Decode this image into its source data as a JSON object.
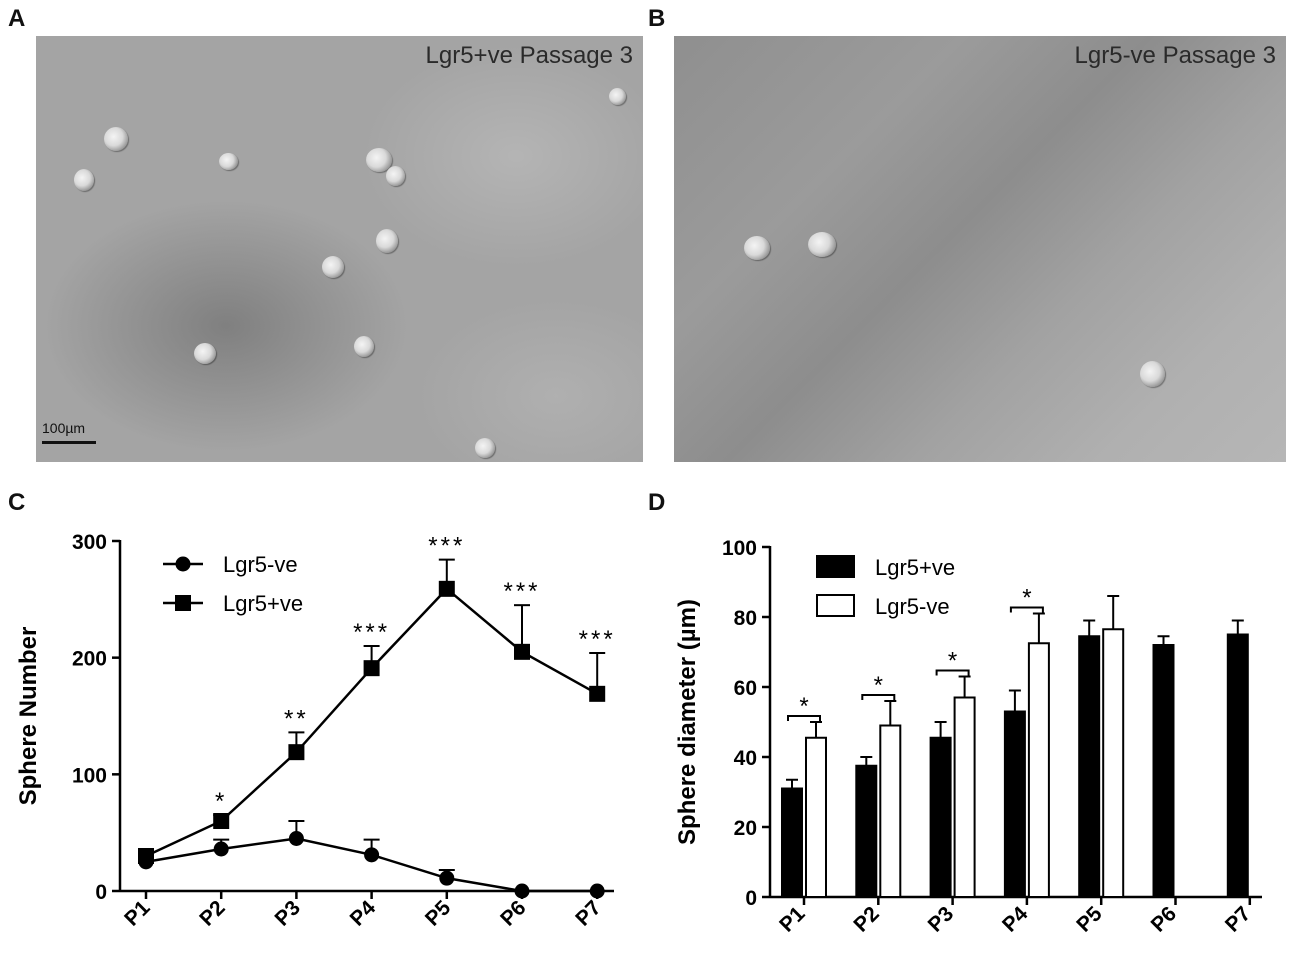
{
  "panels": {
    "A": {
      "letter": "A",
      "label": "Lgr5+ve Passage 3",
      "scale": "100µm"
    },
    "B": {
      "letter": "B",
      "label": "Lgr5-ve Passage 3"
    },
    "C": {
      "letter": "C"
    },
    "D": {
      "letter": "D"
    }
  },
  "chart_data": [
    {
      "panel": "C",
      "type": "line",
      "categories": [
        "P1",
        "P2",
        "P3",
        "P4",
        "P5",
        "P6",
        "P7"
      ],
      "ylabel": "Sphere Number",
      "xlabel": "",
      "ylim": [
        0,
        300
      ],
      "yticks": [
        0,
        100,
        200,
        300
      ],
      "legend_position": "top-left",
      "series": [
        {
          "name": "Lgr5-ve",
          "marker": "circle",
          "values": [
            25,
            36,
            45,
            31,
            11,
            0,
            0
          ],
          "errors": [
            3,
            8,
            15,
            13,
            7,
            0,
            0
          ]
        },
        {
          "name": "Lgr5+ve",
          "marker": "square",
          "values": [
            30,
            60,
            119,
            191,
            259,
            205,
            169
          ],
          "errors": [
            3,
            5,
            17,
            19,
            25,
            40,
            35
          ]
        }
      ],
      "significance": [
        "",
        "*",
        "**",
        "***",
        "***",
        "***",
        "***"
      ]
    },
    {
      "panel": "D",
      "type": "bar",
      "categories": [
        "P1",
        "P2",
        "P3",
        "P4",
        "P5",
        "P6",
        "P7"
      ],
      "ylabel": "Sphere diameter (µm)",
      "xlabel": "",
      "ylim": [
        0,
        100
      ],
      "yticks": [
        0,
        20,
        40,
        60,
        80,
        100
      ],
      "legend_position": "top-left",
      "series": [
        {
          "name": "Lgr5+ve",
          "fill": "#000000",
          "values": [
            31,
            37.5,
            45.5,
            53,
            74.5,
            72,
            75
          ],
          "errors": [
            2.5,
            2.5,
            4.5,
            6,
            4.5,
            2.5,
            4
          ]
        },
        {
          "name": "Lgr5-ve",
          "fill": "#ffffff",
          "values": [
            45.5,
            49,
            57,
            72.5,
            76.5,
            null,
            null
          ],
          "errors": [
            4.5,
            7,
            6,
            8.5,
            9.5,
            null,
            null
          ]
        }
      ],
      "significance": [
        "*",
        "*",
        "*",
        "*",
        "",
        "",
        ""
      ]
    }
  ]
}
